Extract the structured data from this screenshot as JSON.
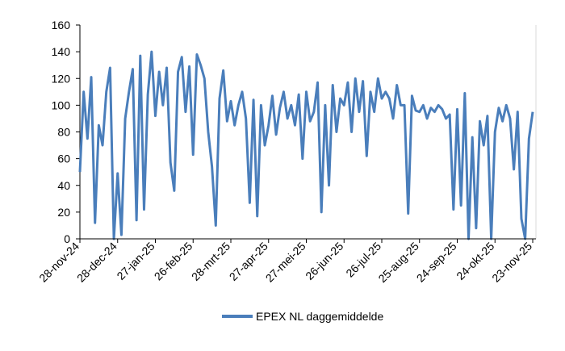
{
  "chart_data": {
    "type": "line",
    "categories": [
      "28-nov-24",
      null,
      null,
      null,
      null,
      null,
      null,
      null,
      null,
      null,
      "28-dec-24",
      null,
      null,
      null,
      null,
      null,
      null,
      null,
      null,
      null,
      "27-jan-25",
      null,
      null,
      null,
      null,
      null,
      null,
      null,
      null,
      null,
      "26-feb-25",
      null,
      null,
      null,
      null,
      null,
      null,
      null,
      null,
      null,
      "28-mrt-25",
      null,
      null,
      null,
      null,
      null,
      null,
      null,
      null,
      null,
      "27-apr-25",
      null,
      null,
      null,
      null,
      null,
      null,
      null,
      null,
      null,
      "27-mei-25",
      null,
      null,
      null,
      null,
      null,
      null,
      null,
      null,
      null,
      "26-jun-25",
      null,
      null,
      null,
      null,
      null,
      null,
      null,
      null,
      null,
      "26-jul-25",
      null,
      null,
      null,
      null,
      null,
      null,
      null,
      null,
      null,
      "25-aug-25",
      null,
      null,
      null,
      null,
      null,
      null,
      null,
      null,
      null,
      "24-sep-25",
      null,
      null,
      null,
      null,
      null,
      null,
      null,
      null,
      null,
      "24-okt-25",
      null,
      null,
      null,
      null,
      null,
      null,
      null,
      null,
      null,
      "23-nov-25"
    ],
    "series": [
      {
        "name": "EPEX NL daggemiddelde",
        "color": "#4a7ebb",
        "values": [
          50,
          110,
          75,
          121,
          12,
          85,
          70,
          110,
          128,
          0,
          49,
          3,
          90,
          110,
          127,
          14,
          137,
          22,
          108,
          140,
          92,
          125,
          100,
          128,
          57,
          36,
          125,
          136,
          95,
          129,
          63,
          138,
          130,
          120,
          80,
          54,
          10,
          105,
          126,
          88,
          103,
          85,
          100,
          110,
          90,
          27,
          104,
          17,
          100,
          70,
          85,
          107,
          78,
          98,
          110,
          90,
          100,
          85,
          108,
          60,
          110,
          88,
          95,
          117,
          20,
          100,
          40,
          115,
          80,
          105,
          100,
          117,
          80,
          120,
          95,
          118,
          62,
          110,
          95,
          120,
          105,
          110,
          105,
          90,
          115,
          100,
          100,
          19,
          107,
          96,
          95,
          100,
          90,
          98,
          95,
          100,
          97,
          90,
          93,
          22,
          97,
          25,
          109,
          0,
          76,
          8,
          88,
          70,
          92,
          0,
          80,
          98,
          88,
          100,
          90,
          52,
          95,
          15,
          0,
          75,
          95
        ]
      }
    ],
    "ylim": [
      0,
      160
    ],
    "yticks": [
      0,
      20,
      40,
      60,
      80,
      100,
      120,
      140,
      160
    ]
  }
}
